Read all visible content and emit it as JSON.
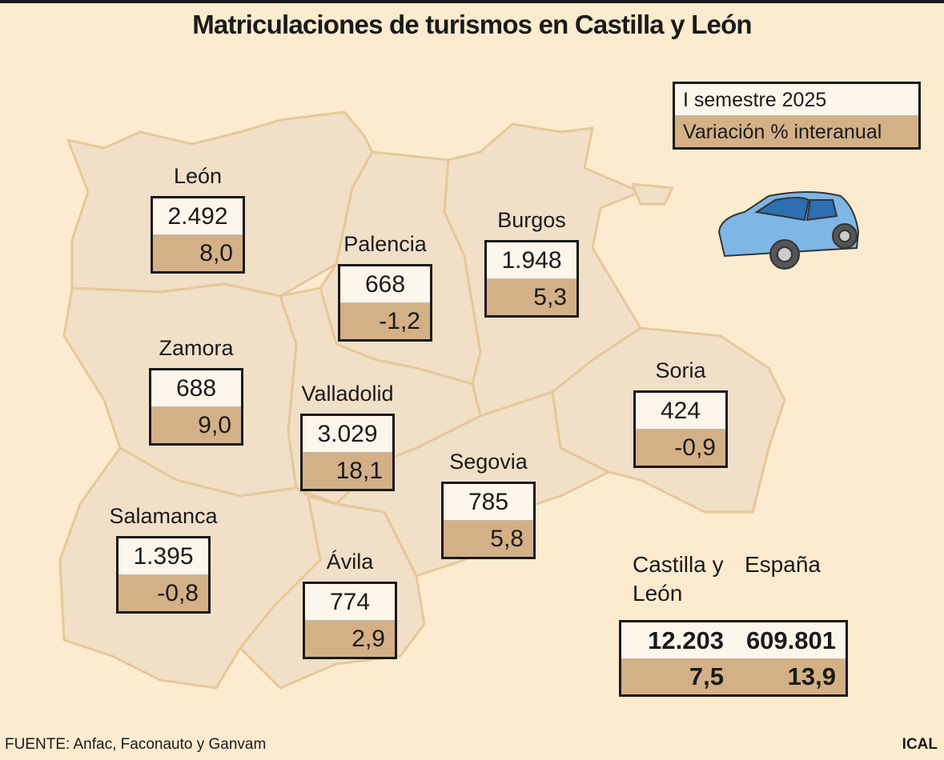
{
  "title": "Matriculaciones de turismos en Castilla y León",
  "legend": {
    "count": "I semestre 2025",
    "variation": "Variación % interanual"
  },
  "provinces": [
    {
      "name": "León",
      "count": "2.492",
      "variation": "8,0"
    },
    {
      "name": "Palencia",
      "count": "668",
      "variation": "-1,2"
    },
    {
      "name": "Burgos",
      "count": "1.948",
      "variation": "5,3"
    },
    {
      "name": "Zamora",
      "count": "688",
      "variation": "9,0"
    },
    {
      "name": "Valladolid",
      "count": "3.029",
      "variation": "18,1"
    },
    {
      "name": "Soria",
      "count": "424",
      "variation": "-0,9"
    },
    {
      "name": "Segovia",
      "count": "785",
      "variation": "5,8"
    },
    {
      "name": "Salamanca",
      "count": "1.395",
      "variation": "-0,8"
    },
    {
      "name": "Ávila",
      "count": "774",
      "variation": "2,9"
    }
  ],
  "totals": [
    {
      "name": "Castilla y León",
      "count": "12.203",
      "variation": "7,5"
    },
    {
      "name": "España",
      "count": "609.801",
      "variation": "13,9"
    }
  ],
  "source": "FUENTE: Anfac, Faconauto y Ganvam",
  "credit": "ICAL"
}
